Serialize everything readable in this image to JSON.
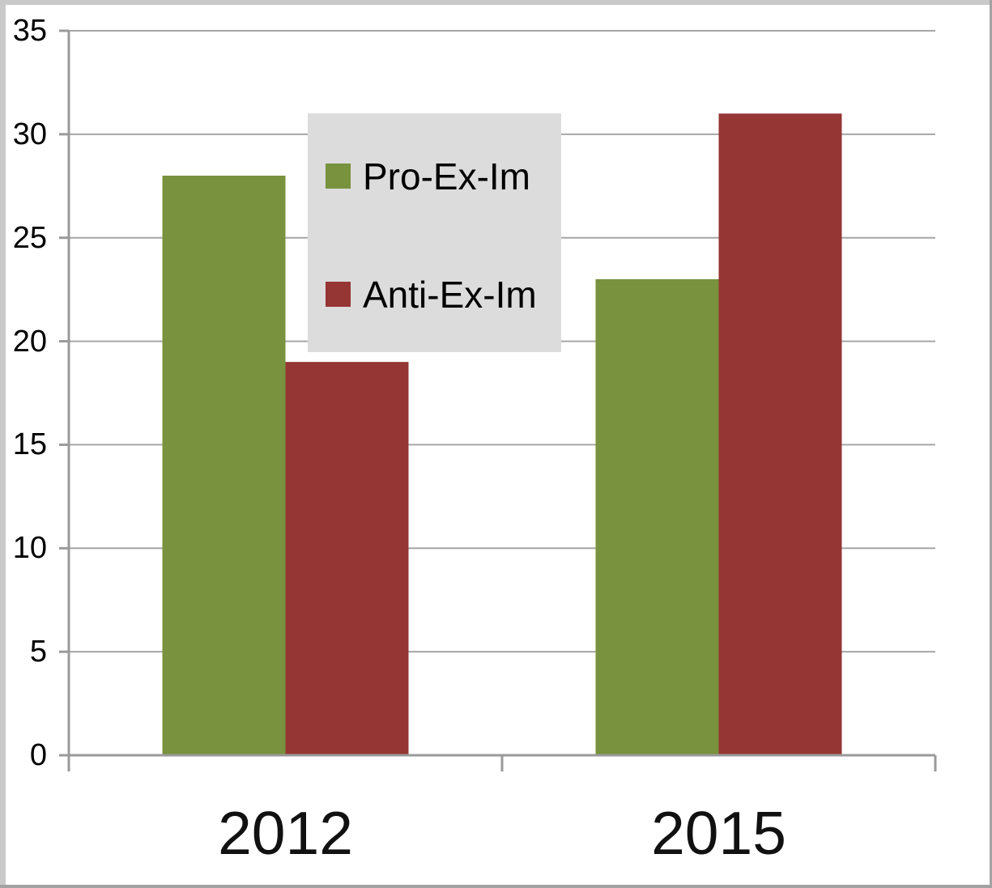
{
  "chart_data": {
    "type": "bar",
    "title": "",
    "xlabel": "",
    "ylabel": "",
    "categories": [
      "2012",
      "2015"
    ],
    "series": [
      {
        "name": "Pro-Ex-Im",
        "color": "#78923D",
        "values": [
          28,
          23
        ]
      },
      {
        "name": "Anti-Ex-Im",
        "color": "#953634",
        "values": [
          19,
          31
        ]
      }
    ],
    "ylim": [
      0,
      35
    ],
    "ytick_step": 5,
    "grid": true,
    "legend_position": "upper-center",
    "colors": {
      "gridline": "#a6a6a6",
      "axis": "#9a9a9a",
      "legend_bg": "#dcdcdc",
      "text": "#000000"
    }
  }
}
